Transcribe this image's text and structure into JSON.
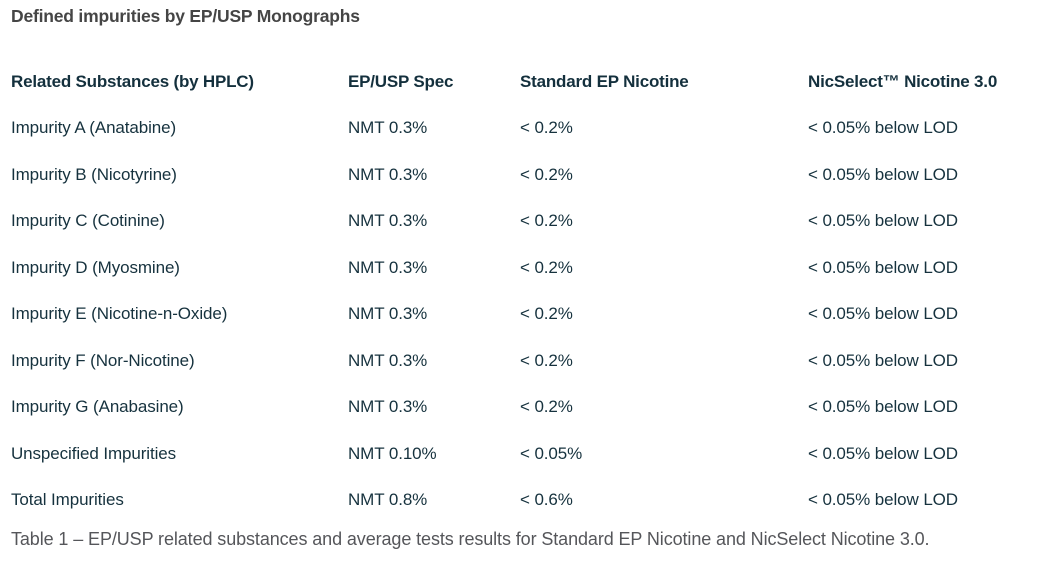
{
  "page": {
    "title": "Defined impurities by EP/USP Monographs",
    "caption": "Table 1 – EP/USP related substances and average tests results for Standard EP Nicotine and NicSelect Nicotine 3.0."
  },
  "colors": {
    "background": "#FFFFFF",
    "title_text": "#454545",
    "table_text": "#16323E",
    "caption_text": "#55565A"
  },
  "table": {
    "columns": [
      "Related Substances (by HPLC)",
      "EP/USP Spec",
      "Standard EP Nicotine",
      "NicSelect™ Nicotine 3.0"
    ],
    "rows": [
      {
        "substance": "Impurity A (Anatabine)",
        "spec": "NMT 0.3%",
        "standard": "< 0.2%",
        "nicselect": "< 0.05% below LOD"
      },
      {
        "substance": "Impurity B (Nicotyrine)",
        "spec": "NMT 0.3%",
        "standard": "< 0.2%",
        "nicselect": "< 0.05% below LOD"
      },
      {
        "substance": "Impurity C (Cotinine)",
        "spec": "NMT 0.3%",
        "standard": "< 0.2%",
        "nicselect": "< 0.05% below LOD"
      },
      {
        "substance": "Impurity D (Myosmine)",
        "spec": "NMT 0.3%",
        "standard": "< 0.2%",
        "nicselect": "< 0.05% below LOD"
      },
      {
        "substance": "Impurity E (Nicotine-n-Oxide)",
        "spec": "NMT 0.3%",
        "standard": "< 0.2%",
        "nicselect": "< 0.05% below LOD"
      },
      {
        "substance": "Impurity F (Nor-Nicotine)",
        "spec": "NMT 0.3%",
        "standard": "< 0.2%",
        "nicselect": "< 0.05% below LOD"
      },
      {
        "substance": "Impurity G (Anabasine)",
        "spec": "NMT 0.3%",
        "standard": "< 0.2%",
        "nicselect": "< 0.05% below LOD"
      },
      {
        "substance": "Unspecified Impurities",
        "spec": "NMT 0.10%",
        "standard": "< 0.05%",
        "nicselect": "< 0.05% below LOD"
      },
      {
        "substance": "Total Impurities",
        "spec": "NMT 0.8%",
        "standard": "< 0.6%",
        "nicselect": "< 0.05% below LOD"
      }
    ]
  }
}
